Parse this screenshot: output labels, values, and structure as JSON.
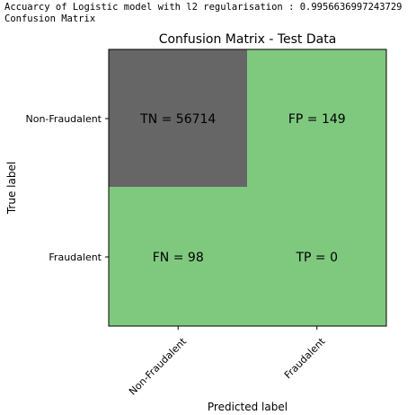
{
  "console": {
    "accuracy_line": "Accuarcy of Logistic model with l2 regularisation : 0.9956636997243729",
    "cm_line": "Confusion Matrix"
  },
  "chart_data": {
    "type": "heatmap",
    "title": "Confusion Matrix - Test Data",
    "xlabel": "Predicted label",
    "ylabel": "True label",
    "x_categories": [
      "Non-Fraudalent",
      "Fraudalent"
    ],
    "y_categories": [
      "Non-Fraudalent",
      "Fraudalent"
    ],
    "cells": [
      [
        {
          "label": "TN = 56714",
          "value": 56714
        },
        {
          "label": "FP = 149",
          "value": 149
        }
      ],
      [
        {
          "label": "FN = 98",
          "value": 98
        },
        {
          "label": "TP = 0",
          "value": 0
        }
      ]
    ],
    "colors": {
      "high": "#666666",
      "low": "#7fc97f"
    },
    "grid": false,
    "legend": "none"
  }
}
